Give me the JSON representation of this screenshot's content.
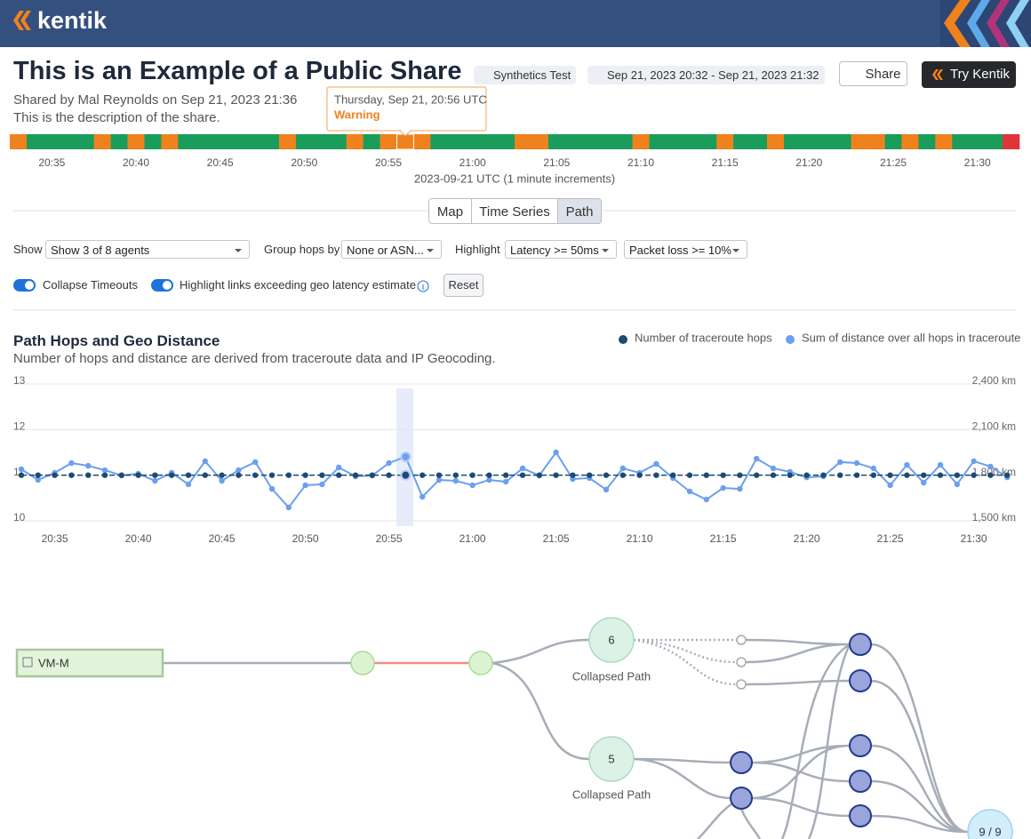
{
  "header": {
    "brand": "kentik",
    "try_button": "Try Kentik"
  },
  "share": {
    "title": "This is an Example of a Public Share",
    "test_type": "Synthetics Test",
    "date_range": "Sep 21, 2023 20:32 - Sep 21, 2023 21:32",
    "share_button": "Share",
    "shared_by": "Shared by Mal Reynolds on Sep 21, 2023 21:36",
    "description": "This is the description of the share."
  },
  "tooltip": {
    "time": "Thursday, Sep 21, 20:56 UTC",
    "status": "Warning"
  },
  "timeline": {
    "segment_colors": [
      "#f0821e",
      "#1a9c5b",
      "#1a9c5b",
      "#1a9c5b",
      "#1a9c5b",
      "#f0821e",
      "#1a9c5b",
      "#f0821e",
      "#1a9c5b",
      "#f0821e",
      "#1a9c5b",
      "#1a9c5b",
      "#1a9c5b",
      "#1a9c5b",
      "#1a9c5b",
      "#1a9c5b",
      "#f0821e",
      "#1a9c5b",
      "#1a9c5b",
      "#1a9c5b",
      "#f0821e",
      "#1a9c5b",
      "#f0821e",
      "#f0821e",
      "#f0821e",
      "#1a9c5b",
      "#1a9c5b",
      "#1a9c5b",
      "#1a9c5b",
      "#1a9c5b",
      "#f0821e",
      "#f0821e",
      "#1a9c5b",
      "#1a9c5b",
      "#1a9c5b",
      "#1a9c5b",
      "#1a9c5b",
      "#f0821e",
      "#1a9c5b",
      "#1a9c5b",
      "#1a9c5b",
      "#1a9c5b",
      "#f0821e",
      "#1a9c5b",
      "#1a9c5b",
      "#f0821e",
      "#1a9c5b",
      "#1a9c5b",
      "#1a9c5b",
      "#1a9c5b",
      "#f0821e",
      "#f0821e",
      "#1a9c5b",
      "#f0821e",
      "#1a9c5b",
      "#f0821e",
      "#1a9c5b",
      "#1a9c5b",
      "#1a9c5b",
      "#e0343a"
    ],
    "categories": [
      null,
      null,
      "20:35",
      null,
      null,
      null,
      null,
      "20:40",
      null,
      null,
      null,
      null,
      "20:45",
      null,
      null,
      null,
      null,
      "20:50",
      null,
      null,
      null,
      null,
      "20:55",
      null,
      null,
      null,
      null,
      "21:00",
      null,
      null,
      null,
      null,
      "21:05",
      null,
      null,
      null,
      null,
      "21:10",
      null,
      null,
      null,
      null,
      "21:15",
      null,
      null,
      null,
      null,
      "21:20",
      null,
      null,
      null,
      null,
      "21:25",
      null,
      null,
      null,
      null,
      "21:30",
      null,
      null
    ],
    "axis_label": "2023-09-21 UTC (1 minute increments)"
  },
  "tabs": [
    "Map",
    "Time Series",
    "Path"
  ],
  "controls": {
    "show_label": "Show",
    "show_value": "Show 3 of 8 agents",
    "group_label": "Group hops by",
    "group_value": "None or ASN...",
    "highlight_label": "Highlight",
    "latency_value": "Latency >= 50ms",
    "loss_value": "Packet loss >= 10%",
    "collapse_toggle": "Collapse Timeouts",
    "geo_toggle": "Highlight links exceeding geo latency estimate",
    "reset": "Reset"
  },
  "chart_data": {
    "type": "line",
    "title": "Path Hops and Geo Distance",
    "subtitle": "Number of hops and distance are derived from traceroute data and IP Geocoding.",
    "categories": [
      null,
      null,
      "20:35",
      null,
      null,
      null,
      null,
      "20:40",
      null,
      null,
      null,
      null,
      "20:45",
      null,
      null,
      null,
      null,
      "20:50",
      null,
      null,
      null,
      null,
      "20:55",
      null,
      null,
      null,
      null,
      "21:00",
      null,
      null,
      null,
      null,
      "21:05",
      null,
      null,
      null,
      null,
      "21:10",
      null,
      null,
      null,
      null,
      "21:15",
      null,
      null,
      null,
      null,
      "21:20",
      null,
      null,
      null,
      null,
      "21:25",
      null,
      null,
      null,
      null,
      "21:30",
      null,
      null
    ],
    "series": [
      {
        "name": "Number of traceroute hops",
        "color": "#1d4a72",
        "values": [
          11,
          11,
          11,
          11,
          11,
          11,
          11,
          11,
          11,
          11,
          11,
          11,
          11,
          11,
          11,
          11,
          11,
          11,
          11,
          11,
          11,
          11,
          11,
          11,
          11,
          11,
          11,
          11,
          11,
          11,
          11,
          11,
          11,
          11,
          11,
          11,
          11,
          11,
          11,
          11,
          11,
          11,
          11,
          11,
          11,
          11,
          11,
          11,
          11,
          11,
          11,
          11,
          11,
          11,
          11,
          11,
          11,
          11,
          11,
          11
        ]
      },
      {
        "name": "Sum of distance over all hops in traceroute",
        "color": "#6b9ff0",
        "axis": "y2",
        "values": [
          1839,
          1769,
          1816,
          1880,
          1862,
          1833,
          1798,
          1810,
          1763,
          1816,
          1740,
          1892,
          1763,
          1833,
          1886,
          1710,
          1588,
          1734,
          1740,
          1851,
          1792,
          1798,
          1880,
          1921,
          1658,
          1769,
          1763,
          1734,
          1769,
          1757,
          1845,
          1798,
          1950,
          1775,
          1781,
          1705,
          1845,
          1816,
          1874,
          1781,
          1693,
          1640,
          1716,
          1710,
          1909,
          1845,
          1822,
          1786,
          1792,
          1886,
          1880,
          1845,
          1734,
          1868,
          1751,
          1868,
          1740,
          1892,
          1857,
          1786
        ]
      }
    ],
    "ylim": [
      10,
      13
    ],
    "yticks": [
      10,
      11,
      12,
      13
    ],
    "y2lim": [
      1500,
      2400
    ],
    "y2ticks": [
      {
        "value": 1500,
        "label": "1,500 km"
      },
      {
        "value": 1800,
        "label": "1,800 km"
      },
      {
        "value": 2100,
        "label": "2,100 km"
      },
      {
        "value": 2400,
        "label": "2,400 km"
      }
    ],
    "grid": true
  },
  "path": {
    "source": "VM-M",
    "collapsed": [
      {
        "count": "6",
        "label": "Collapsed Path"
      },
      {
        "count": "5",
        "label": "Collapsed Path"
      }
    ],
    "target": "9 / 9"
  }
}
